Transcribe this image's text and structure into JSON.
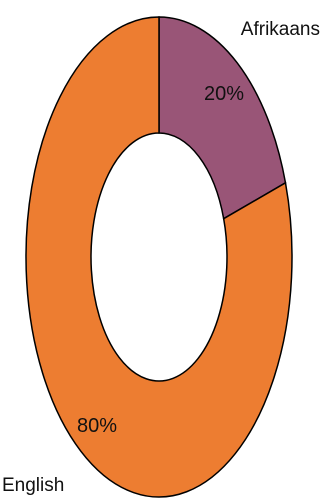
{
  "chart_data": {
    "type": "pie",
    "variant": "donut",
    "title": "",
    "categories": [
      "Afrikaans",
      "English"
    ],
    "values": [
      20,
      80
    ],
    "data_labels": [
      "20%",
      "80%"
    ],
    "colors": [
      "#995577",
      "#ED7D31"
    ],
    "legend": "none"
  }
}
